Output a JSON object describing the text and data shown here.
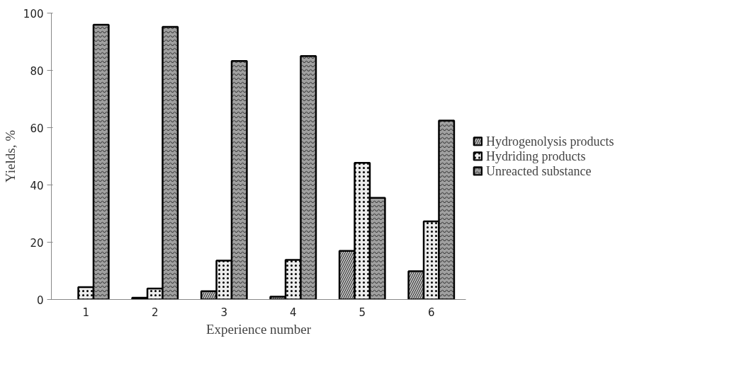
{
  "chart_data": {
    "type": "bar",
    "xlabel": "Experience number",
    "ylabel": "Yields, %",
    "categories": [
      "1",
      "2",
      "3",
      "4",
      "5",
      "6"
    ],
    "series": [
      {
        "name": "Hydrogenolysis products",
        "color": "#c0c0c0",
        "values": [
          null,
          0.6,
          2.9,
          1.0,
          17.0,
          9.9
        ]
      },
      {
        "name": "Hydriding products",
        "color": "#ececec",
        "values": [
          4.3,
          3.8,
          13.6,
          13.8,
          47.7,
          27.3
        ]
      },
      {
        "name": "Unreacted substance",
        "color": "#a0a0a0",
        "values": [
          95.9,
          95.2,
          83.3,
          85.0,
          35.5,
          62.5
        ]
      }
    ],
    "ylim": [
      0,
      100
    ],
    "yticks": [
      0,
      20,
      40,
      60,
      80,
      100
    ],
    "grid": false,
    "legend": "right"
  }
}
